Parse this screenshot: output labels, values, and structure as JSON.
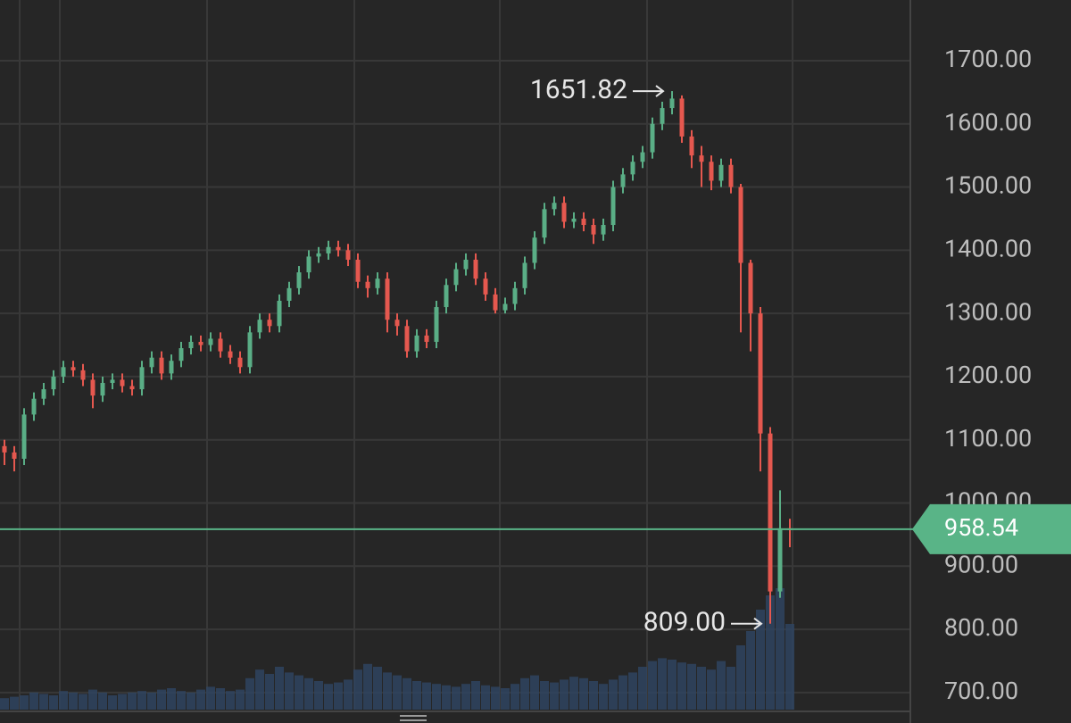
{
  "chart_data": {
    "type": "candlestick",
    "open": [
      1090,
      1080,
      1070,
      1140,
      1165,
      1180,
      1200,
      1215,
      1210,
      1195,
      1170,
      1190,
      1195,
      1185,
      1180,
      1215,
      1230,
      1205,
      1225,
      1245,
      1255,
      1250,
      1260,
      1240,
      1230,
      1215,
      1270,
      1290,
      1280,
      1320,
      1340,
      1365,
      1390,
      1395,
      1405,
      1400,
      1385,
      1350,
      1340,
      1355,
      1290,
      1280,
      1240,
      1265,
      1255,
      1310,
      1345,
      1370,
      1385,
      1355,
      1330,
      1305,
      1315,
      1340,
      1380,
      1420,
      1465,
      1475,
      1445,
      1450,
      1440,
      1425,
      1440,
      1500,
      1520,
      1540,
      1555,
      1600,
      1625,
      1640,
      1580,
      1550,
      1540,
      1510,
      1535,
      1500,
      1380,
      1300,
      1110,
      860,
      960
    ],
    "high": [
      1100,
      1090,
      1150,
      1175,
      1190,
      1210,
      1225,
      1225,
      1220,
      1205,
      1200,
      1205,
      1205,
      1195,
      1225,
      1240,
      1240,
      1235,
      1255,
      1265,
      1265,
      1270,
      1270,
      1250,
      1240,
      1280,
      1300,
      1300,
      1330,
      1350,
      1375,
      1400,
      1405,
      1415,
      1415,
      1410,
      1395,
      1360,
      1365,
      1365,
      1300,
      1290,
      1275,
      1275,
      1320,
      1355,
      1380,
      1395,
      1395,
      1365,
      1340,
      1325,
      1350,
      1390,
      1430,
      1475,
      1485,
      1485,
      1460,
      1460,
      1450,
      1450,
      1510,
      1530,
      1550,
      1565,
      1610,
      1635,
      1651.82,
      1645,
      1590,
      1565,
      1550,
      1545,
      1545,
      1505,
      1385,
      1310,
      1120,
      1020,
      975
    ],
    "low": [
      1060,
      1050,
      1060,
      1130,
      1155,
      1170,
      1190,
      1200,
      1185,
      1150,
      1160,
      1180,
      1175,
      1170,
      1170,
      1205,
      1195,
      1195,
      1215,
      1235,
      1240,
      1240,
      1230,
      1220,
      1205,
      1205,
      1260,
      1270,
      1270,
      1310,
      1330,
      1355,
      1380,
      1385,
      1390,
      1375,
      1340,
      1325,
      1330,
      1270,
      1265,
      1230,
      1230,
      1245,
      1245,
      1300,
      1335,
      1360,
      1345,
      1320,
      1300,
      1300,
      1305,
      1330,
      1370,
      1410,
      1455,
      1435,
      1435,
      1430,
      1410,
      1415,
      1430,
      1490,
      1510,
      1530,
      1545,
      1590,
      1615,
      1570,
      1530,
      1500,
      1495,
      1500,
      1490,
      1270,
      1240,
      1050,
      809,
      850,
      930
    ],
    "close": [
      1080,
      1070,
      1140,
      1165,
      1180,
      1200,
      1215,
      1210,
      1195,
      1170,
      1190,
      1195,
      1185,
      1180,
      1215,
      1230,
      1205,
      1225,
      1245,
      1255,
      1250,
      1260,
      1240,
      1230,
      1215,
      1270,
      1290,
      1280,
      1320,
      1340,
      1365,
      1390,
      1395,
      1405,
      1400,
      1385,
      1350,
      1340,
      1355,
      1290,
      1280,
      1240,
      1265,
      1255,
      1310,
      1345,
      1370,
      1385,
      1355,
      1330,
      1305,
      1315,
      1340,
      1380,
      1420,
      1465,
      1475,
      1445,
      1450,
      1440,
      1425,
      1440,
      1500,
      1520,
      1540,
      1555,
      1600,
      1625,
      1640,
      1580,
      1550,
      1540,
      1510,
      1535,
      1500,
      1380,
      1300,
      1110,
      860,
      960,
      958.54
    ],
    "volume": [
      8,
      9,
      10,
      12,
      11,
      10,
      13,
      12,
      11,
      14,
      12,
      10,
      11,
      12,
      13,
      12,
      14,
      15,
      13,
      12,
      14,
      16,
      15,
      13,
      14,
      22,
      28,
      25,
      30,
      26,
      24,
      22,
      20,
      18,
      19,
      21,
      28,
      32,
      30,
      26,
      24,
      22,
      20,
      19,
      18,
      17,
      16,
      18,
      20,
      17,
      16,
      15,
      18,
      22,
      24,
      20,
      19,
      21,
      23,
      22,
      20,
      18,
      21,
      24,
      26,
      30,
      34,
      36,
      35,
      33,
      32,
      30,
      28,
      34,
      30,
      45,
      55,
      70,
      80,
      85,
      60
    ],
    "vlim": [
      0,
      100
    ],
    "up_color": "#5aae86",
    "down_color": "#e5584f",
    "volume_color": "#2f4460",
    "current": 958.54,
    "current_color": "#59b487",
    "high_label": "1651.82",
    "low_label": "809.00",
    "ylim": [
      673,
      1796
    ],
    "yticks": [
      {
        "value": 700,
        "label": "700.00"
      },
      {
        "value": 800,
        "label": "800.00"
      },
      {
        "value": 900,
        "label": "900.00"
      },
      {
        "value": 1000,
        "label": "1000.00"
      },
      {
        "value": 1100,
        "label": "1100.00"
      },
      {
        "value": 1200,
        "label": "1200.00"
      },
      {
        "value": 1300,
        "label": "1300.00"
      },
      {
        "value": 1400,
        "label": "1400.00"
      },
      {
        "value": 1500,
        "label": "1500.00"
      },
      {
        "value": 1600,
        "label": "1600.00"
      },
      {
        "value": 1700,
        "label": "1700.00"
      }
    ],
    "grid": true
  }
}
